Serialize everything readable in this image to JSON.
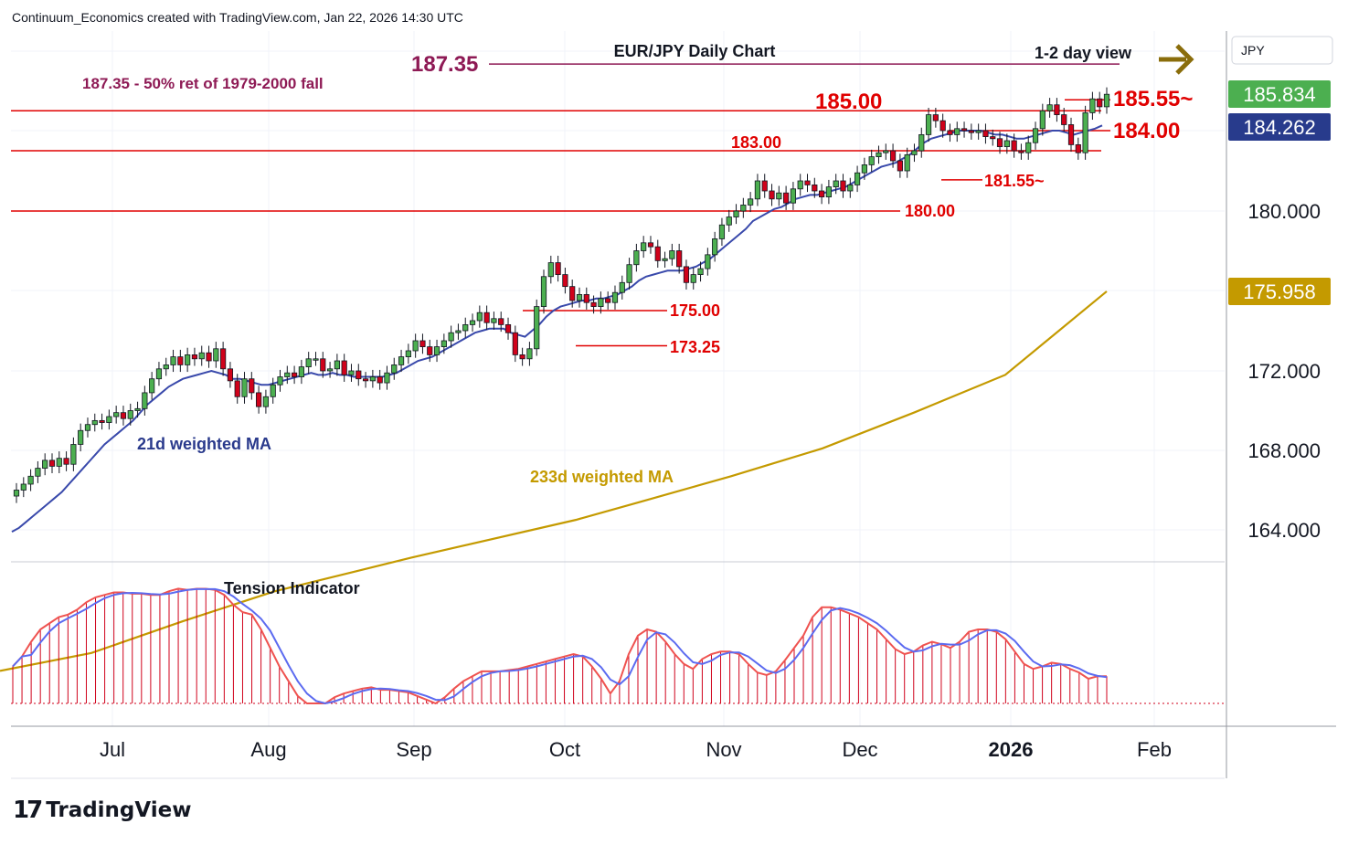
{
  "header": "Continuum_Economics created with TradingView.com, Jan 22, 2026 14:30 UTC",
  "logo_text": "TradingView",
  "currency_button": "JPY",
  "colors": {
    "up": "#4caf50",
    "down": "#d0021b",
    "ma21": "#3949ab",
    "ma233": "#c49a00",
    "level": "#e00000",
    "target": "#8e1a55",
    "arrow": "#8a6d0b"
  },
  "chart_data": {
    "type": "candlestick",
    "title": "EUR/JPY Daily Chart",
    "subtitle": "1-2 day view",
    "x_labels": [
      "Jul",
      "Aug",
      "Sep",
      "Oct",
      "Nov",
      "Dec",
      "2026",
      "Feb"
    ],
    "y_ticks": [
      "164.000",
      "168.000",
      "172.000",
      "180.000"
    ],
    "price_scale_labels": [
      {
        "text": "185.834",
        "value": 185.834,
        "kind": "last"
      },
      {
        "text": "184.262",
        "value": 184.262,
        "kind": "ma21"
      },
      {
        "text": "175.958",
        "value": 175.958,
        "kind": "ma233"
      }
    ],
    "levels": [
      {
        "label": "187.35",
        "value": 187.35,
        "color": "target"
      },
      {
        "label": "185.00",
        "value": 185.0,
        "color": "level"
      },
      {
        "label": "183.00",
        "value": 183.0,
        "color": "level"
      },
      {
        "label": "180.00",
        "value": 180.0,
        "color": "level"
      },
      {
        "label": "175.00",
        "value": 175.0,
        "color": "level"
      },
      {
        "label": "173.25",
        "value": 173.25,
        "color": "level"
      },
      {
        "label": "185.55~",
        "value": 185.55,
        "color": "level"
      },
      {
        "label": "184.00",
        "value": 184.0,
        "color": "level"
      },
      {
        "label": "181.55~",
        "value": 181.55,
        "color": "level"
      }
    ],
    "annotations": {
      "target_note": "187.35 - 50% ret of 1979-2000 fall",
      "ma21": "21d weighted MA",
      "ma233": "233d weighted MA",
      "indicator": "Tension Indicator"
    },
    "closes": [
      166.0,
      166.3,
      166.7,
      167.1,
      167.5,
      167.2,
      167.6,
      167.3,
      168.3,
      169.0,
      169.3,
      169.5,
      169.4,
      169.7,
      169.9,
      169.6,
      170.0,
      170.1,
      170.9,
      171.6,
      172.1,
      172.3,
      172.7,
      172.3,
      172.8,
      172.6,
      172.9,
      172.5,
      173.1,
      172.1,
      171.5,
      170.7,
      171.6,
      170.9,
      170.2,
      170.7,
      171.3,
      171.7,
      171.9,
      171.7,
      172.2,
      172.6,
      172.6,
      172.0,
      172.1,
      172.5,
      171.8,
      172.0,
      171.6,
      171.5,
      171.7,
      171.4,
      171.9,
      172.3,
      172.7,
      173.0,
      173.5,
      173.2,
      172.8,
      173.2,
      173.5,
      173.9,
      174.0,
      174.3,
      174.5,
      174.9,
      174.4,
      174.6,
      174.3,
      173.9,
      172.8,
      172.6,
      173.1,
      175.2,
      176.7,
      177.4,
      176.8,
      176.2,
      175.5,
      175.8,
      175.4,
      175.2,
      175.6,
      175.4,
      175.9,
      176.4,
      177.3,
      178.0,
      178.4,
      178.2,
      177.5,
      177.6,
      178.0,
      177.2,
      176.4,
      176.8,
      177.1,
      177.8,
      178.6,
      179.3,
      179.7,
      180.0,
      180.3,
      180.6,
      181.5,
      181.0,
      180.6,
      180.9,
      180.4,
      181.1,
      181.5,
      181.3,
      181.0,
      180.7,
      181.2,
      181.5,
      181.0,
      181.3,
      181.9,
      182.3,
      182.7,
      182.9,
      183.0,
      182.5,
      182.0,
      182.8,
      183.0,
      183.8,
      184.8,
      184.5,
      184.0,
      183.8,
      184.1,
      184.0,
      183.9,
      184.0,
      183.7,
      183.6,
      183.2,
      183.5,
      183.0,
      182.9,
      183.4,
      184.1,
      185.0,
      185.3,
      184.8,
      184.3,
      183.3,
      182.9,
      184.9,
      185.6,
      185.2,
      185.83
    ],
    "ma21": [
      163.9,
      164.1,
      164.4,
      164.7,
      165.0,
      165.3,
      165.6,
      165.9,
      166.3,
      166.7,
      167.1,
      167.5,
      167.9,
      168.3,
      168.6,
      168.9,
      169.2,
      169.5,
      169.9,
      170.3,
      170.6,
      170.9,
      171.2,
      171.4,
      171.6,
      171.7,
      171.8,
      171.9,
      172.0,
      171.9,
      171.8,
      171.6,
      171.6,
      171.5,
      171.4,
      171.3,
      171.3,
      171.4,
      171.5,
      171.6,
      171.7,
      171.8,
      171.9,
      171.8,
      171.8,
      171.9,
      171.8,
      171.8,
      171.7,
      171.7,
      171.7,
      171.7,
      171.7,
      171.8,
      171.9,
      172.1,
      172.3,
      172.5,
      172.6,
      172.7,
      172.9,
      173.1,
      173.3,
      173.5,
      173.7,
      173.9,
      174.0,
      174.1,
      174.1,
      174.1,
      173.9,
      173.8,
      173.7,
      174.0,
      174.3,
      174.7,
      175.0,
      175.2,
      175.3,
      175.4,
      175.5,
      175.5,
      175.6,
      175.6,
      175.7,
      175.8,
      176.0,
      176.2,
      176.5,
      176.7,
      176.8,
      176.9,
      177.0,
      177.0,
      177.0,
      177.1,
      177.2,
      177.4,
      177.6,
      177.9,
      178.2,
      178.5,
      178.8,
      179.1,
      179.5,
      179.7,
      179.9,
      180.1,
      180.2,
      180.4,
      180.6,
      180.7,
      180.8,
      180.8,
      180.9,
      181.0,
      181.1,
      181.2,
      181.4,
      181.6,
      181.8,
      182.0,
      182.2,
      182.3,
      182.4,
      182.6,
      182.8,
      183.1,
      183.4,
      183.6,
      183.7,
      183.8,
      183.9,
      184.0,
      184.0,
      184.0,
      184.0,
      183.9,
      183.8,
      183.8,
      183.7,
      183.6,
      183.6,
      183.7,
      183.8,
      183.9,
      184.0,
      184.0,
      183.9,
      183.8,
      183.9,
      184.0,
      184.1,
      184.262
    ],
    "ma233": [
      [
        0,
        156.9
      ],
      [
        100,
        157.8
      ],
      [
        200,
        159.4
      ],
      [
        300,
        160.9
      ],
      [
        450,
        162.6
      ],
      [
        630,
        164.5
      ],
      [
        700,
        165.4
      ],
      [
        800,
        166.7
      ],
      [
        900,
        168.1
      ],
      [
        1000,
        169.9
      ],
      [
        1100,
        171.8
      ],
      [
        1211,
        175.958
      ]
    ],
    "tension": [
      0.3,
      0.38,
      0.5,
      0.6,
      0.65,
      0.7,
      0.72,
      0.76,
      0.82,
      0.86,
      0.88,
      0.9,
      0.9,
      0.89,
      0.89,
      0.88,
      0.88,
      0.91,
      0.93,
      0.92,
      0.93,
      0.93,
      0.92,
      0.88,
      0.8,
      0.74,
      0.72,
      0.6,
      0.45,
      0.3,
      0.18,
      0.06,
      0.0,
      0.0,
      0.0,
      0.05,
      0.08,
      0.1,
      0.12,
      0.13,
      0.11,
      0.11,
      0.1,
      0.09,
      0.06,
      0.03,
      0.0,
      0.05,
      0.12,
      0.18,
      0.22,
      0.26,
      0.26,
      0.26,
      0.27,
      0.28,
      0.3,
      0.32,
      0.34,
      0.36,
      0.38,
      0.4,
      0.38,
      0.3,
      0.2,
      0.08,
      0.18,
      0.4,
      0.55,
      0.6,
      0.58,
      0.5,
      0.4,
      0.32,
      0.28,
      0.36,
      0.4,
      0.42,
      0.42,
      0.4,
      0.32,
      0.25,
      0.23,
      0.26,
      0.35,
      0.45,
      0.55,
      0.7,
      0.78,
      0.78,
      0.76,
      0.73,
      0.7,
      0.65,
      0.6,
      0.52,
      0.44,
      0.4,
      0.42,
      0.47,
      0.5,
      0.48,
      0.45,
      0.5,
      0.58,
      0.6,
      0.6,
      0.58,
      0.52,
      0.42,
      0.32,
      0.28,
      0.3,
      0.33,
      0.32,
      0.28,
      0.25,
      0.2,
      0.22,
      0.22
    ]
  }
}
